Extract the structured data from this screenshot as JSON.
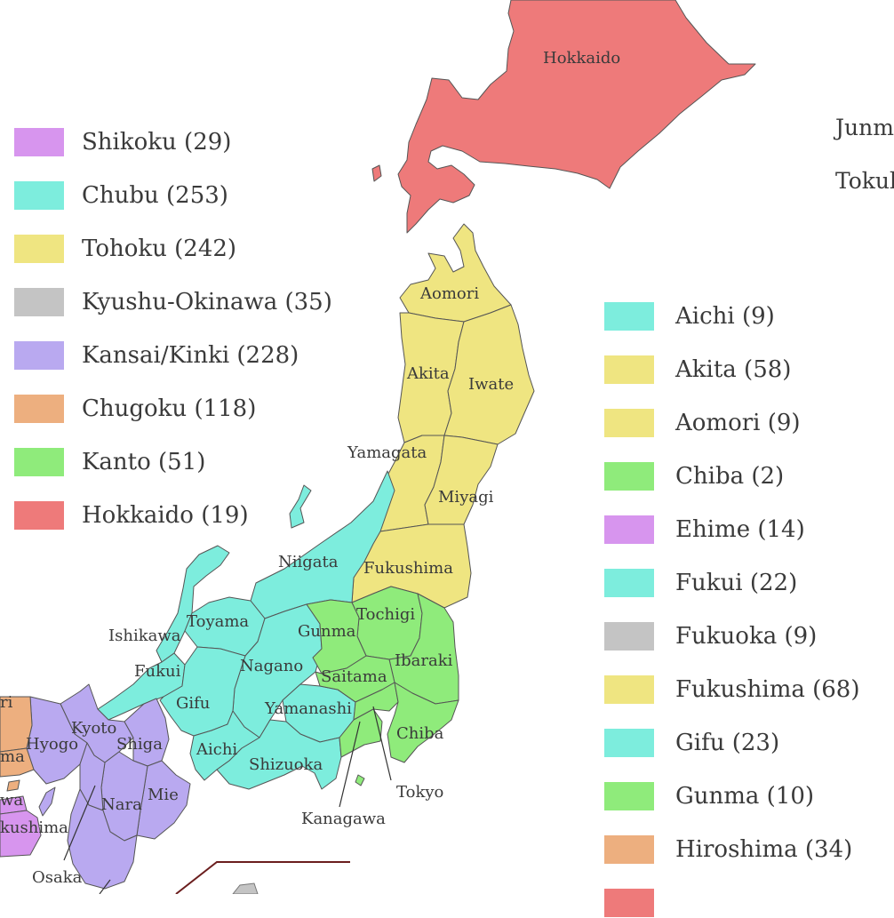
{
  "colors": {
    "shikoku": "#D795EE",
    "chubu": "#7DEDDD",
    "tohoku": "#EFE581",
    "kyushu_okinawa": "#C4C4C4",
    "kansai_kinki": "#B9A9F0",
    "chugoku": "#EDAF7F",
    "kanto": "#8FEB7B",
    "hokkaido": "#EE7A7A"
  },
  "region_legend": [
    {
      "label": "Shikoku (29)",
      "color": "#D795EE"
    },
    {
      "label": "Chubu (253)",
      "color": "#7DEDDD"
    },
    {
      "label": "Tohoku (242)",
      "color": "#EFE581"
    },
    {
      "label": "Kyushu-Okinawa (35)",
      "color": "#C4C4C4"
    },
    {
      "label": "Kansai/Kinki (228)",
      "color": "#B9A9F0"
    },
    {
      "label": "Chugoku (118)",
      "color": "#EDAF7F"
    },
    {
      "label": "Kanto (51)",
      "color": "#8FEB7B"
    },
    {
      "label": "Hokkaido (19)",
      "color": "#EE7A7A"
    }
  ],
  "prefecture_legend": [
    {
      "label": "Aichi (9)",
      "color": "#7DEDDD"
    },
    {
      "label": "Akita (58)",
      "color": "#EFE581"
    },
    {
      "label": "Aomori (9)",
      "color": "#EFE581"
    },
    {
      "label": "Chiba (2)",
      "color": "#8FEB7B"
    },
    {
      "label": "Ehime (14)",
      "color": "#D795EE"
    },
    {
      "label": "Fukui (22)",
      "color": "#7DEDDD"
    },
    {
      "label": "Fukuoka (9)",
      "color": "#C4C4C4"
    },
    {
      "label": "Fukushima (68)",
      "color": "#EFE581"
    },
    {
      "label": "Gifu (23)",
      "color": "#7DEDDD"
    },
    {
      "label": "Gunma (10)",
      "color": "#8FEB7B"
    },
    {
      "label": "Hiroshima (34)",
      "color": "#EDAF7F"
    },
    {
      "label": "",
      "color": "#EE7A7A"
    }
  ],
  "corner_labels": [
    "Junm",
    "Tokul"
  ],
  "map_labels": {
    "hokkaido": "Hokkaido",
    "aomori": "Aomori",
    "akita": "Akita",
    "iwate": "Iwate",
    "yamagata": "Yamagata",
    "miyagi": "Miyagi",
    "niigata": "Niigata",
    "fukushima": "Fukushima",
    "tochigi": "Tochigi",
    "gunma": "Gunma",
    "ibaraki": "Ibaraki",
    "saitama": "Saitama",
    "ishikawa": "Ishikawa",
    "toyama": "Toyama",
    "fukui": "Fukui",
    "nagano": "Nagano",
    "gifu": "Gifu",
    "yamanashi": "Yamanashi",
    "chiba": "Chiba",
    "aichi": "Aichi",
    "shizuoka": "Shizuoka",
    "tokyo": "Tokyo",
    "kanagawa": "Kanagawa",
    "kyoto": "Kyoto",
    "hyogo": "Hyogo",
    "shiga": "Shiga",
    "mie": "Mie",
    "nara": "Nara",
    "osaka": "Osaka",
    "partial_ri": "ri",
    "partial_ma": "ma",
    "partial_wa": "wa",
    "partial_kushima": "kushima"
  }
}
